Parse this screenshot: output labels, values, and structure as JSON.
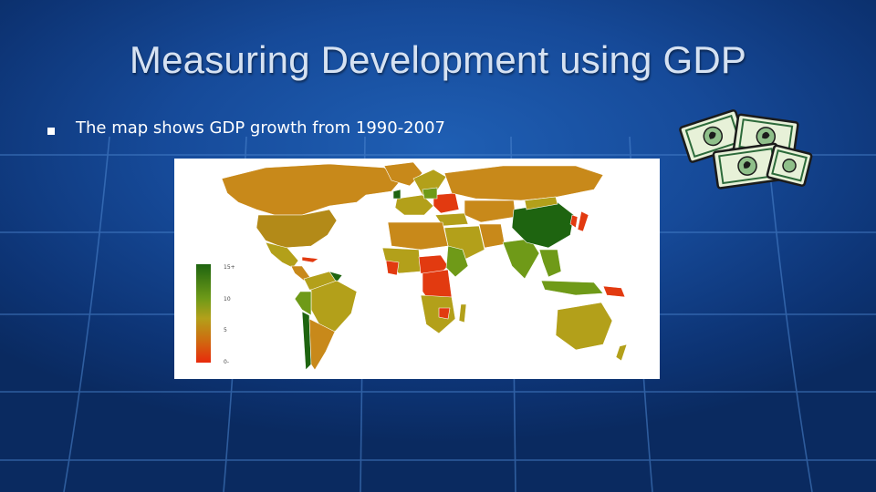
{
  "slide": {
    "title": "Measuring Development using GDP",
    "bullet": "The map shows GDP growth from 1990-2007"
  },
  "map": {
    "legend": {
      "labels": [
        "15+",
        "10",
        "5",
        "0-"
      ],
      "colors": [
        "#1e6410",
        "#8ea51c",
        "#cf6a10",
        "#e82a0c"
      ]
    },
    "palette": {
      "high": "#1e6410",
      "mid_high": "#6f9a18",
      "mid": "#b3a01a",
      "mid_low": "#c8891a",
      "low": "#e23a10"
    }
  },
  "clipart": {
    "icon": "money-bills-icon"
  },
  "theme": {
    "background": "#164a99",
    "title_color": "#d6e2f2",
    "text_color": "#ffffff"
  }
}
